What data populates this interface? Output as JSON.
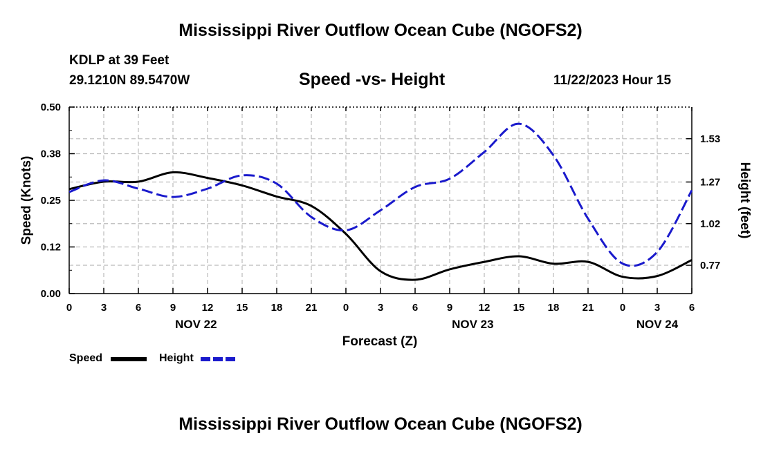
{
  "header": {
    "title": "Mississippi River Outflow Ocean Cube (NGOFS2)",
    "station": "KDLP at 39 Feet",
    "coords": "29.1210N  89.5470W",
    "date": "11/22/2023 Hour 15"
  },
  "footer": {
    "title": "Mississippi River Outflow Ocean Cube (NGOFS2)"
  },
  "legend": {
    "speed_label": "Speed",
    "height_label": "Height"
  },
  "chart_data": {
    "type": "line",
    "title": "Speed -vs- Height",
    "xlabel": "Forecast (Z)",
    "ylabel_left": "Speed (Knots)",
    "ylabel_right": "Height (feet)",
    "x_range_hours": [
      0,
      54
    ],
    "x_tick_labels": [
      "0",
      "3",
      "6",
      "9",
      "12",
      "15",
      "18",
      "21",
      "0",
      "3",
      "6",
      "9",
      "12",
      "15",
      "18",
      "21",
      "0",
      "3",
      "6"
    ],
    "date_labels": [
      {
        "label": "NOV 22",
        "hour": 11
      },
      {
        "label": "NOV 23",
        "hour": 35
      },
      {
        "label": "NOV 24",
        "hour": 51
      }
    ],
    "y_left": {
      "range": [
        0,
        0.5
      ],
      "ticks": [
        0,
        0.125,
        0.25,
        0.375,
        0.5
      ],
      "tick_labels": [
        "0.00",
        "0.12",
        "0.25",
        "0.38",
        "0.50"
      ]
    },
    "y_right": {
      "range": [
        0.6,
        1.72
      ],
      "ticks": [
        0.77,
        1.02,
        1.27,
        1.53
      ],
      "tick_labels": [
        "0.77",
        "1.02",
        "1.27",
        "1.53"
      ]
    },
    "series": [
      {
        "name": "Speed",
        "axis": "left",
        "color": "#000000",
        "style": "solid",
        "x": [
          0,
          3,
          6,
          9,
          12,
          15,
          18,
          21,
          24,
          27,
          30,
          33,
          36,
          39,
          42,
          45,
          48,
          51,
          54
        ],
        "values": [
          0.28,
          0.3,
          0.3,
          0.325,
          0.31,
          0.29,
          0.26,
          0.235,
          0.16,
          0.06,
          0.037,
          0.065,
          0.085,
          0.1,
          0.08,
          0.085,
          0.045,
          0.047,
          0.09
        ]
      },
      {
        "name": "Height",
        "axis": "right",
        "color": "#1a1acc",
        "style": "dashed",
        "x": [
          0,
          3,
          6,
          9,
          12,
          15,
          18,
          21,
          24,
          27,
          30,
          33,
          36,
          39,
          42,
          45,
          48,
          51,
          54
        ],
        "values": [
          1.21,
          1.28,
          1.23,
          1.18,
          1.23,
          1.31,
          1.26,
          1.06,
          0.98,
          1.1,
          1.24,
          1.29,
          1.45,
          1.62,
          1.43,
          1.05,
          0.78,
          0.85,
          1.22
        ]
      }
    ]
  }
}
